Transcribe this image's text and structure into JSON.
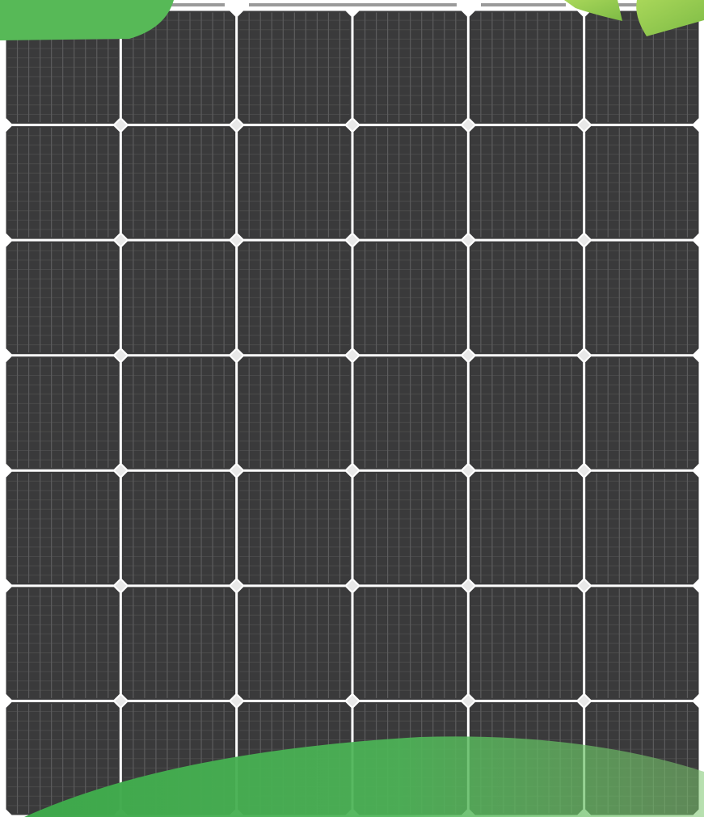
{
  "image": {
    "subject": "solar-panel",
    "cell_grid": {
      "rows": 7,
      "columns": 6
    },
    "fingers_per_cell": 10,
    "colors": {
      "background": "#ffffff",
      "cell": "#3a3a3b",
      "cell_finger": "#5c5c5d",
      "cell_horizontal": "#4a4a4b",
      "bus_wire": "#e8e8e8",
      "top_ribbon": "#9a9a9a",
      "accent_green": "#4fb24f",
      "accent_light_green": "#8cc84b"
    }
  }
}
